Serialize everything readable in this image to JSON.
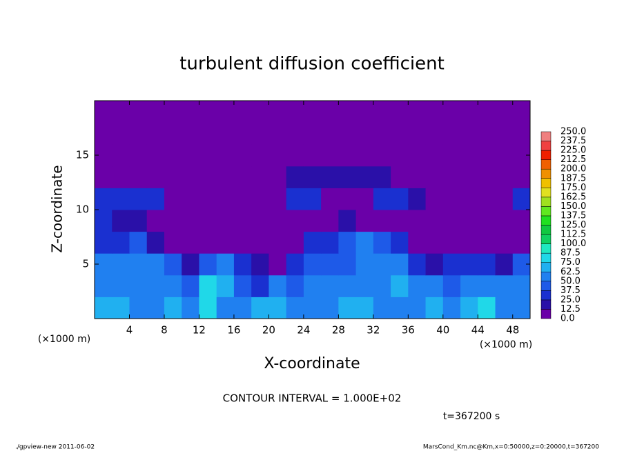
{
  "chart_data": {
    "type": "heatmap",
    "title": "turbulent diffusion coefficient",
    "x_label": "X-coordinate",
    "y_label": "Z-coordinate",
    "x_unit": "(×1000 m)",
    "y_unit": "(×1000 m)",
    "contour_note": "CONTOUR INTERVAL = 1.000E+02",
    "time_note": "t=367200 s",
    "footer_left": "./gpview-new  2011-06-02",
    "footer_right": "MarsCond_Km.nc@Km,x=0:50000,z=0:20000,t=367200",
    "xlim": [
      0,
      50
    ],
    "ylim": [
      0,
      20
    ],
    "xticks": [
      4,
      8,
      12,
      16,
      20,
      24,
      28,
      32,
      36,
      40,
      44,
      48
    ],
    "yticks": [
      5,
      10,
      15
    ],
    "x": [
      1,
      3,
      5,
      7,
      9,
      11,
      13,
      15,
      17,
      19,
      21,
      23,
      25,
      27,
      29,
      31,
      33,
      35,
      37,
      39,
      41,
      43,
      45,
      47,
      49
    ],
    "y": [
      1,
      3,
      5,
      7,
      9,
      11,
      13,
      15,
      17,
      19
    ],
    "z": [
      [
        70,
        65,
        60,
        55,
        65,
        50,
        80,
        60,
        50,
        70,
        65,
        60,
        55,
        60,
        65,
        70,
        60,
        55,
        60,
        65,
        55,
        70,
        75,
        55,
        60
      ],
      [
        60,
        55,
        50,
        60,
        55,
        45,
        75,
        70,
        40,
        30,
        50,
        45,
        50,
        55,
        60,
        60,
        55,
        65,
        55,
        50,
        45,
        60,
        55,
        60,
        55
      ],
      [
        50,
        50,
        55,
        60,
        40,
        20,
        40,
        50,
        30,
        15,
        6,
        25,
        40,
        45,
        45,
        50,
        55,
        50,
        30,
        20,
        25,
        30,
        25,
        20,
        45
      ],
      [
        30,
        30,
        45,
        20,
        6,
        6,
        6,
        6,
        6,
        6,
        6,
        6,
        30,
        35,
        45,
        50,
        40,
        25,
        6,
        6,
        6,
        6,
        6,
        6,
        6
      ],
      [
        30,
        20,
        15,
        6,
        6,
        6,
        6,
        6,
        6,
        6,
        6,
        6,
        6,
        6,
        20,
        6,
        6,
        6,
        6,
        6,
        6,
        6,
        6,
        6,
        6
      ],
      [
        30,
        30,
        25,
        25,
        6,
        6,
        6,
        6,
        6,
        6,
        6,
        25,
        25,
        6,
        6,
        6,
        25,
        25,
        20,
        6,
        6,
        6,
        6,
        6,
        25
      ],
      [
        6,
        6,
        6,
        6,
        6,
        6,
        6,
        6,
        6,
        6,
        6,
        20,
        20,
        20,
        20,
        20,
        20,
        6,
        6,
        6,
        6,
        6,
        6,
        6,
        6
      ],
      [
        6,
        6,
        6,
        6,
        6,
        6,
        6,
        6,
        6,
        6,
        6,
        6,
        6,
        6,
        6,
        6,
        6,
        6,
        6,
        6,
        6,
        6,
        6,
        6,
        6
      ],
      [
        6,
        6,
        6,
        6,
        6,
        6,
        6,
        6,
        6,
        6,
        6,
        6,
        6,
        6,
        6,
        6,
        6,
        6,
        6,
        6,
        6,
        6,
        6,
        6,
        6
      ],
      [
        6,
        6,
        6,
        6,
        6,
        6,
        6,
        6,
        6,
        6,
        6,
        6,
        6,
        6,
        6,
        6,
        6,
        6,
        6,
        6,
        6,
        6,
        6,
        6,
        6
      ]
    ],
    "levels": [
      {
        "value": 0,
        "label": "0.0"
      },
      12.5,
      {
        "value": 25,
        "label": "25.0"
      },
      37.5,
      {
        "value": 50,
        "label": "50.0"
      },
      62.5,
      {
        "value": 75,
        "label": "75.0"
      },
      87.5,
      {
        "value": 100,
        "label": "100.0"
      },
      112.5,
      {
        "value": 125,
        "label": "125.0"
      },
      137.5,
      {
        "value": 150,
        "label": "150.0"
      },
      162.5,
      {
        "value": 175,
        "label": "175.0"
      },
      187.5,
      {
        "value": 200,
        "label": "200.0"
      },
      212.5,
      {
        "value": 225,
        "label": "225.0"
      },
      237.5,
      {
        "value": 250,
        "label": "250.0"
      }
    ],
    "colors": [
      "#6a00a8",
      "#2a10a8",
      "#1a30d0",
      "#1e5ae8",
      "#2080f0",
      "#20b0f0",
      "#20d8e8",
      "#20e8c0",
      "#10d060",
      "#10c840",
      "#20e020",
      "#60e820",
      "#a0e020",
      "#e0e020",
      "#f0c000",
      "#f09000",
      "#f06000",
      "#f02000",
      "#f04040",
      "#f08080"
    ]
  }
}
